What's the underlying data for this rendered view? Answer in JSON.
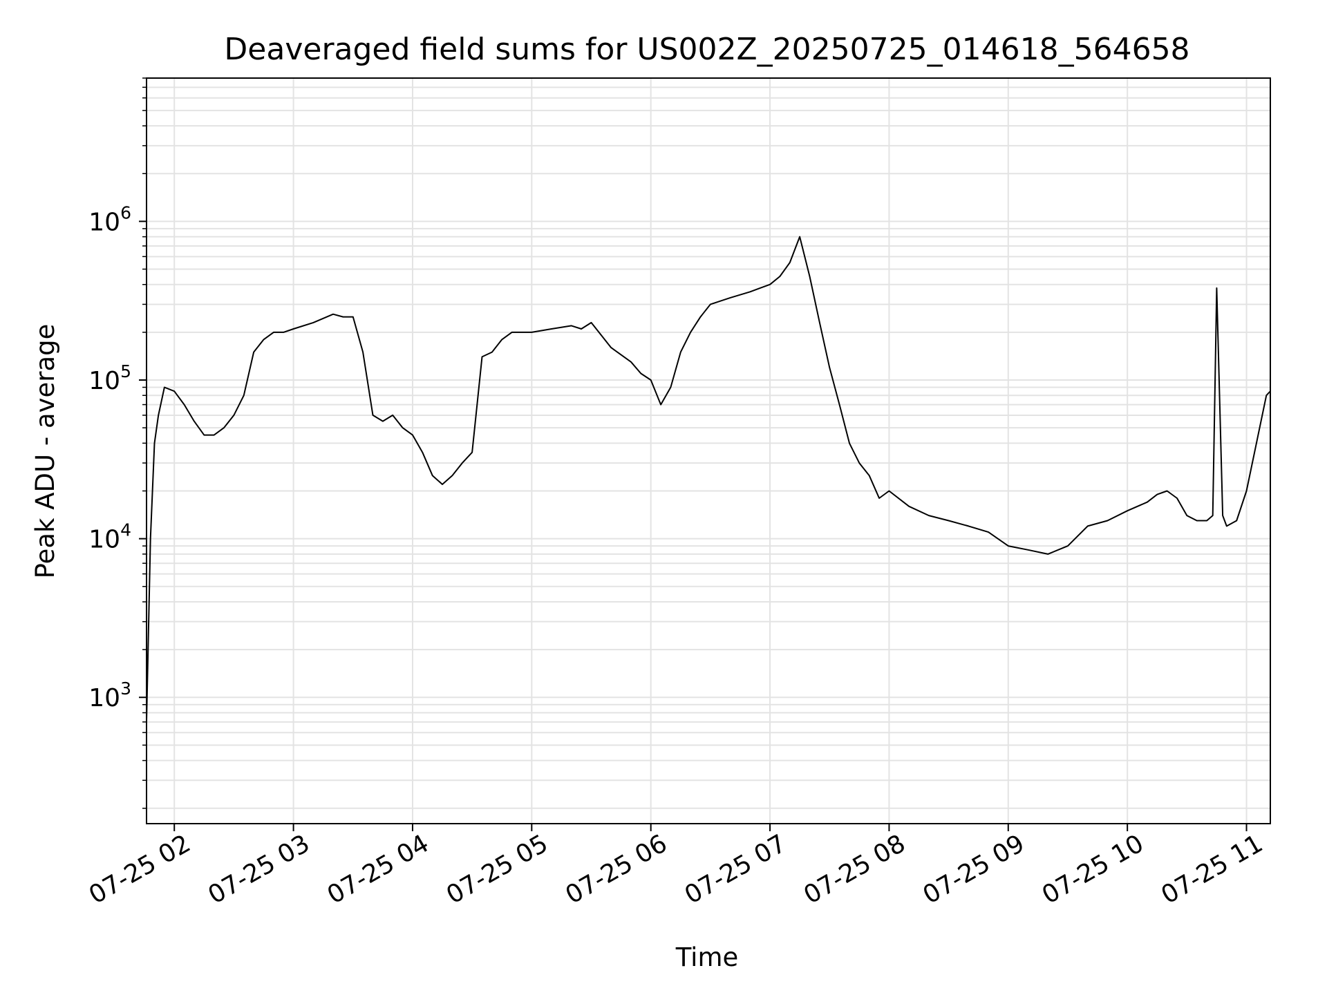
{
  "chart_data": {
    "type": "line",
    "title": "Deaveraged field sums for US002Z_20250725_014618_564658",
    "xlabel": "Time",
    "ylabel": "Peak ADU - average",
    "y_scale": "log",
    "ylim": [
      160,
      8000000
    ],
    "xlim": [
      "2025-07-25 01:46",
      "2025-07-25 11:12"
    ],
    "grid": true,
    "line_color": "#000000",
    "grid_color": "#e3e3e3",
    "x_ticks": [
      {
        "value": "2025-07-25 02:00",
        "label": "07-25 02"
      },
      {
        "value": "2025-07-25 03:00",
        "label": "07-25 03"
      },
      {
        "value": "2025-07-25 04:00",
        "label": "07-25 04"
      },
      {
        "value": "2025-07-25 05:00",
        "label": "07-25 05"
      },
      {
        "value": "2025-07-25 06:00",
        "label": "07-25 06"
      },
      {
        "value": "2025-07-25 07:00",
        "label": "07-25 07"
      },
      {
        "value": "2025-07-25 08:00",
        "label": "07-25 08"
      },
      {
        "value": "2025-07-25 09:00",
        "label": "07-25 09"
      },
      {
        "value": "2025-07-25 10:00",
        "label": "07-25 10"
      },
      {
        "value": "2025-07-25 11:00",
        "label": "07-25 11"
      }
    ],
    "y_ticks": [
      {
        "value": 1000,
        "base": "10",
        "exp": "3"
      },
      {
        "value": 10000,
        "base": "10",
        "exp": "4"
      },
      {
        "value": 100000,
        "base": "10",
        "exp": "5"
      },
      {
        "value": 1000000,
        "base": "10",
        "exp": "6"
      }
    ],
    "series": [
      {
        "x": [
          "2025-07-25 01:46",
          "2025-07-25 01:48",
          "2025-07-25 01:50",
          "2025-07-25 01:52",
          "2025-07-25 01:55",
          "2025-07-25 02:00",
          "2025-07-25 02:05",
          "2025-07-25 02:10",
          "2025-07-25 02:15",
          "2025-07-25 02:20",
          "2025-07-25 02:25",
          "2025-07-25 02:30",
          "2025-07-25 02:35",
          "2025-07-25 02:40",
          "2025-07-25 02:45",
          "2025-07-25 02:50",
          "2025-07-25 02:55",
          "2025-07-25 03:00",
          "2025-07-25 03:10",
          "2025-07-25 03:20",
          "2025-07-25 03:25",
          "2025-07-25 03:30",
          "2025-07-25 03:35",
          "2025-07-25 03:40",
          "2025-07-25 03:45",
          "2025-07-25 03:50",
          "2025-07-25 03:55",
          "2025-07-25 04:00",
          "2025-07-25 04:05",
          "2025-07-25 04:10",
          "2025-07-25 04:15",
          "2025-07-25 04:20",
          "2025-07-25 04:25",
          "2025-07-25 04:30",
          "2025-07-25 04:35",
          "2025-07-25 04:40",
          "2025-07-25 04:45",
          "2025-07-25 04:50",
          "2025-07-25 04:55",
          "2025-07-25 05:00",
          "2025-07-25 05:10",
          "2025-07-25 05:20",
          "2025-07-25 05:25",
          "2025-07-25 05:30",
          "2025-07-25 05:40",
          "2025-07-25 05:50",
          "2025-07-25 05:55",
          "2025-07-25 06:00",
          "2025-07-25 06:05",
          "2025-07-25 06:10",
          "2025-07-25 06:15",
          "2025-07-25 06:20",
          "2025-07-25 06:25",
          "2025-07-25 06:30",
          "2025-07-25 06:40",
          "2025-07-25 06:50",
          "2025-07-25 06:55",
          "2025-07-25 07:00",
          "2025-07-25 07:05",
          "2025-07-25 07:10",
          "2025-07-25 07:15",
          "2025-07-25 07:20",
          "2025-07-25 07:25",
          "2025-07-25 07:30",
          "2025-07-25 07:35",
          "2025-07-25 07:40",
          "2025-07-25 07:45",
          "2025-07-25 07:50",
          "2025-07-25 07:55",
          "2025-07-25 08:00",
          "2025-07-25 08:10",
          "2025-07-25 08:20",
          "2025-07-25 08:30",
          "2025-07-25 08:40",
          "2025-07-25 08:50",
          "2025-07-25 09:00",
          "2025-07-25 09:10",
          "2025-07-25 09:20",
          "2025-07-25 09:30",
          "2025-07-25 09:40",
          "2025-07-25 09:50",
          "2025-07-25 10:00",
          "2025-07-25 10:10",
          "2025-07-25 10:15",
          "2025-07-25 10:20",
          "2025-07-25 10:25",
          "2025-07-25 10:30",
          "2025-07-25 10:35",
          "2025-07-25 10:40",
          "2025-07-25 10:43",
          "2025-07-25 10:45",
          "2025-07-25 10:48",
          "2025-07-25 10:50",
          "2025-07-25 10:55",
          "2025-07-25 11:00",
          "2025-07-25 11:05",
          "2025-07-25 11:10",
          "2025-07-25 11:12"
        ],
        "y": [
          700,
          10000,
          40000,
          60000,
          90000,
          85000,
          70000,
          55000,
          45000,
          45000,
          50000,
          60000,
          80000,
          150000,
          180000,
          200000,
          200000,
          210000,
          230000,
          260000,
          250000,
          250000,
          150000,
          60000,
          55000,
          60000,
          50000,
          45000,
          35000,
          25000,
          22000,
          25000,
          30000,
          35000,
          140000,
          150000,
          180000,
          200000,
          200000,
          200000,
          210000,
          220000,
          210000,
          230000,
          160000,
          130000,
          110000,
          100000,
          70000,
          90000,
          150000,
          200000,
          250000,
          300000,
          330000,
          360000,
          380000,
          400000,
          450000,
          550000,
          800000,
          450000,
          230000,
          120000,
          70000,
          40000,
          30000,
          25000,
          18000,
          20000,
          16000,
          14000,
          13000,
          12000,
          11000,
          9000,
          8500,
          8000,
          9000,
          12000,
          13000,
          15000,
          17000,
          19000,
          20000,
          18000,
          14000,
          13000,
          13000,
          14000,
          380000,
          14000,
          12000,
          13000,
          20000,
          40000,
          80000,
          85000
        ]
      }
    ]
  }
}
